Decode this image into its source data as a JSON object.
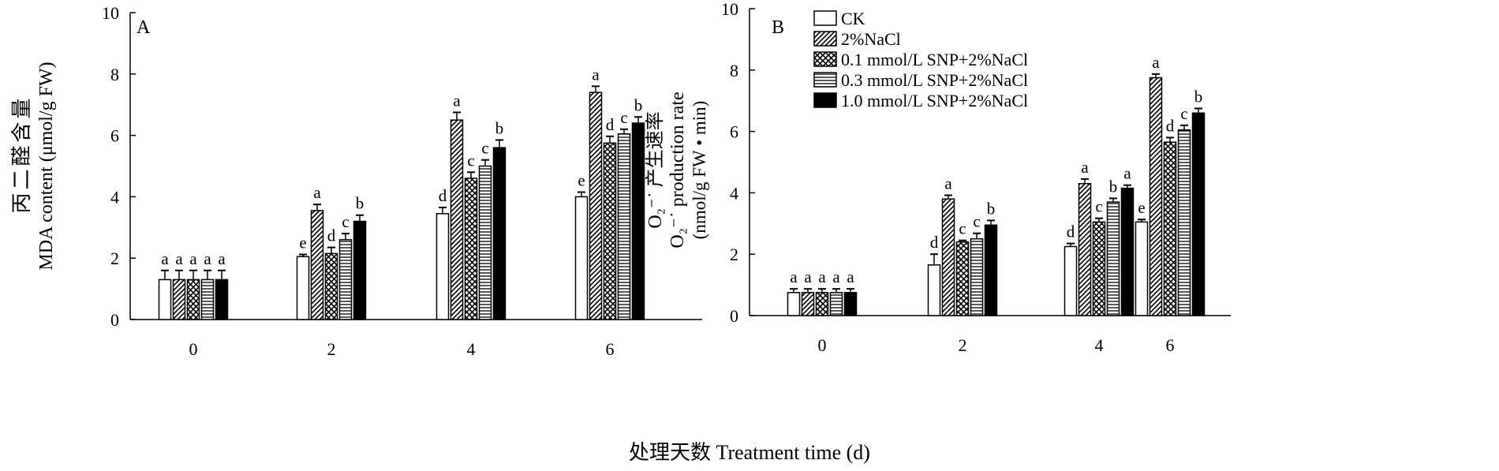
{
  "figure": {
    "xlabel": "处理天数 Treatment time (d)"
  },
  "legend": [
    {
      "label": "CK",
      "pattern": "empty"
    },
    {
      "label": "2%NaCl",
      "pattern": "diag"
    },
    {
      "label": "0.1 mmol/L SNP+2%NaCl",
      "pattern": "cross"
    },
    {
      "label": "0.3 mmol/L SNP+2%NaCl",
      "pattern": "horiz"
    },
    {
      "label": "1.0 mmol/L SNP+2%NaCl",
      "pattern": "solid"
    }
  ],
  "chart_data": [
    {
      "type": "bar",
      "panel": "A",
      "title": "",
      "ylabel_cn": "丙二醛含量",
      "ylabel_en": "MDA content (μmol/g FW)",
      "ylim": [
        0,
        10
      ],
      "yticks": [
        0,
        2,
        4,
        6,
        8,
        10
      ],
      "categories": [
        "0",
        "2",
        "4",
        "6"
      ],
      "series": [
        {
          "name": "CK",
          "values": [
            1.3,
            2.05,
            3.45,
            4.0
          ],
          "errors": [
            0.3,
            0.07,
            0.2,
            0.15
          ],
          "letters": [
            "a",
            "e",
            "d",
            "e"
          ]
        },
        {
          "name": "2%NaCl",
          "values": [
            1.3,
            3.55,
            6.5,
            7.4
          ],
          "errors": [
            0.3,
            0.2,
            0.25,
            0.2
          ],
          "letters": [
            "a",
            "a",
            "a",
            "a"
          ]
        },
        {
          "name": "0.1 mmol/L SNP+2%NaCl",
          "values": [
            1.3,
            2.15,
            4.6,
            5.75
          ],
          "errors": [
            0.3,
            0.2,
            0.2,
            0.22
          ],
          "letters": [
            "a",
            "d",
            "c",
            "d"
          ]
        },
        {
          "name": "0.3 mmol/L SNP+2%NaCl",
          "values": [
            1.3,
            2.6,
            5.0,
            6.05
          ],
          "errors": [
            0.3,
            0.2,
            0.2,
            0.15
          ],
          "letters": [
            "a",
            "c",
            "c",
            "c"
          ]
        },
        {
          "name": "1.0 mmol/L SNP+2%NaCl",
          "values": [
            1.3,
            3.2,
            5.6,
            6.4
          ],
          "errors": [
            0.3,
            0.2,
            0.25,
            0.2
          ],
          "letters": [
            "a",
            "b",
            "b",
            "b"
          ]
        }
      ]
    },
    {
      "type": "bar",
      "panel": "B",
      "title": "",
      "ylabel_cn": "O₂⁻˙ 产生速率",
      "ylabel_en": "O₂⁻˙ production rate",
      "ylabel_unit": "(nmol/g FW • min)",
      "ylim": [
        0,
        10
      ],
      "yticks": [
        0,
        2,
        4,
        6,
        8,
        10
      ],
      "categories": [
        "0",
        "2",
        "4",
        "6"
      ],
      "series": [
        {
          "name": "CK",
          "values": [
            0.75,
            1.65,
            2.25,
            3.05
          ],
          "errors": [
            0.12,
            0.35,
            0.1,
            0.08
          ],
          "letters": [
            "a",
            "d",
            "d",
            "e"
          ]
        },
        {
          "name": "2%NaCl",
          "values": [
            0.75,
            3.8,
            4.3,
            7.75
          ],
          "errors": [
            0.12,
            0.12,
            0.15,
            0.12
          ],
          "letters": [
            "a",
            "a",
            "a",
            "a"
          ]
        },
        {
          "name": "0.1 mmol/L SNP+2%NaCl",
          "values": [
            0.75,
            2.4,
            3.05,
            5.65
          ],
          "errors": [
            0.12,
            0.05,
            0.12,
            0.15
          ],
          "letters": [
            "a",
            "c",
            "c",
            "d"
          ]
        },
        {
          "name": "0.3 mmol/L SNP+2%NaCl",
          "values": [
            0.75,
            2.5,
            3.7,
            6.05
          ],
          "errors": [
            0.12,
            0.18,
            0.12,
            0.15
          ],
          "letters": [
            "a",
            "c",
            "b",
            "c"
          ]
        },
        {
          "name": "1.0 mmol/L SNP+2%NaCl",
          "values": [
            0.75,
            2.95,
            4.15,
            6.6
          ],
          "errors": [
            0.12,
            0.15,
            0.1,
            0.15
          ],
          "letters": [
            "a",
            "b",
            "a",
            "b"
          ]
        }
      ]
    }
  ]
}
